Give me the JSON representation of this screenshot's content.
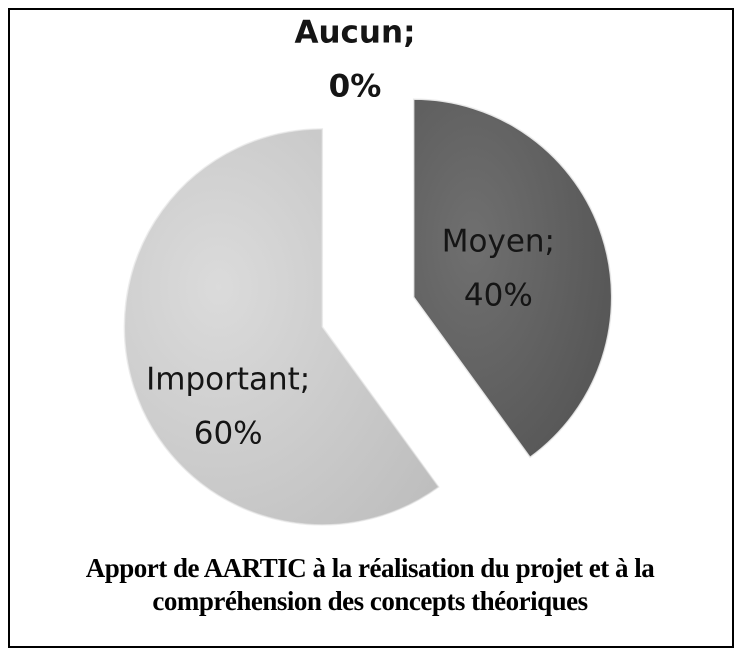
{
  "chart_data": {
    "type": "pie",
    "title": "Apport de AARTIC à la réalisation du projet et à la compréhension des concepts théoriques",
    "categories": [
      "Aucun;",
      "Moyen;",
      "Important;"
    ],
    "values": [
      0,
      40,
      60
    ],
    "value_labels": [
      "0%",
      "40%",
      "60%"
    ],
    "colors": [
      "#8a8a8a",
      "#5c5c5c",
      "#d6d6d6"
    ],
    "exploded": true
  }
}
